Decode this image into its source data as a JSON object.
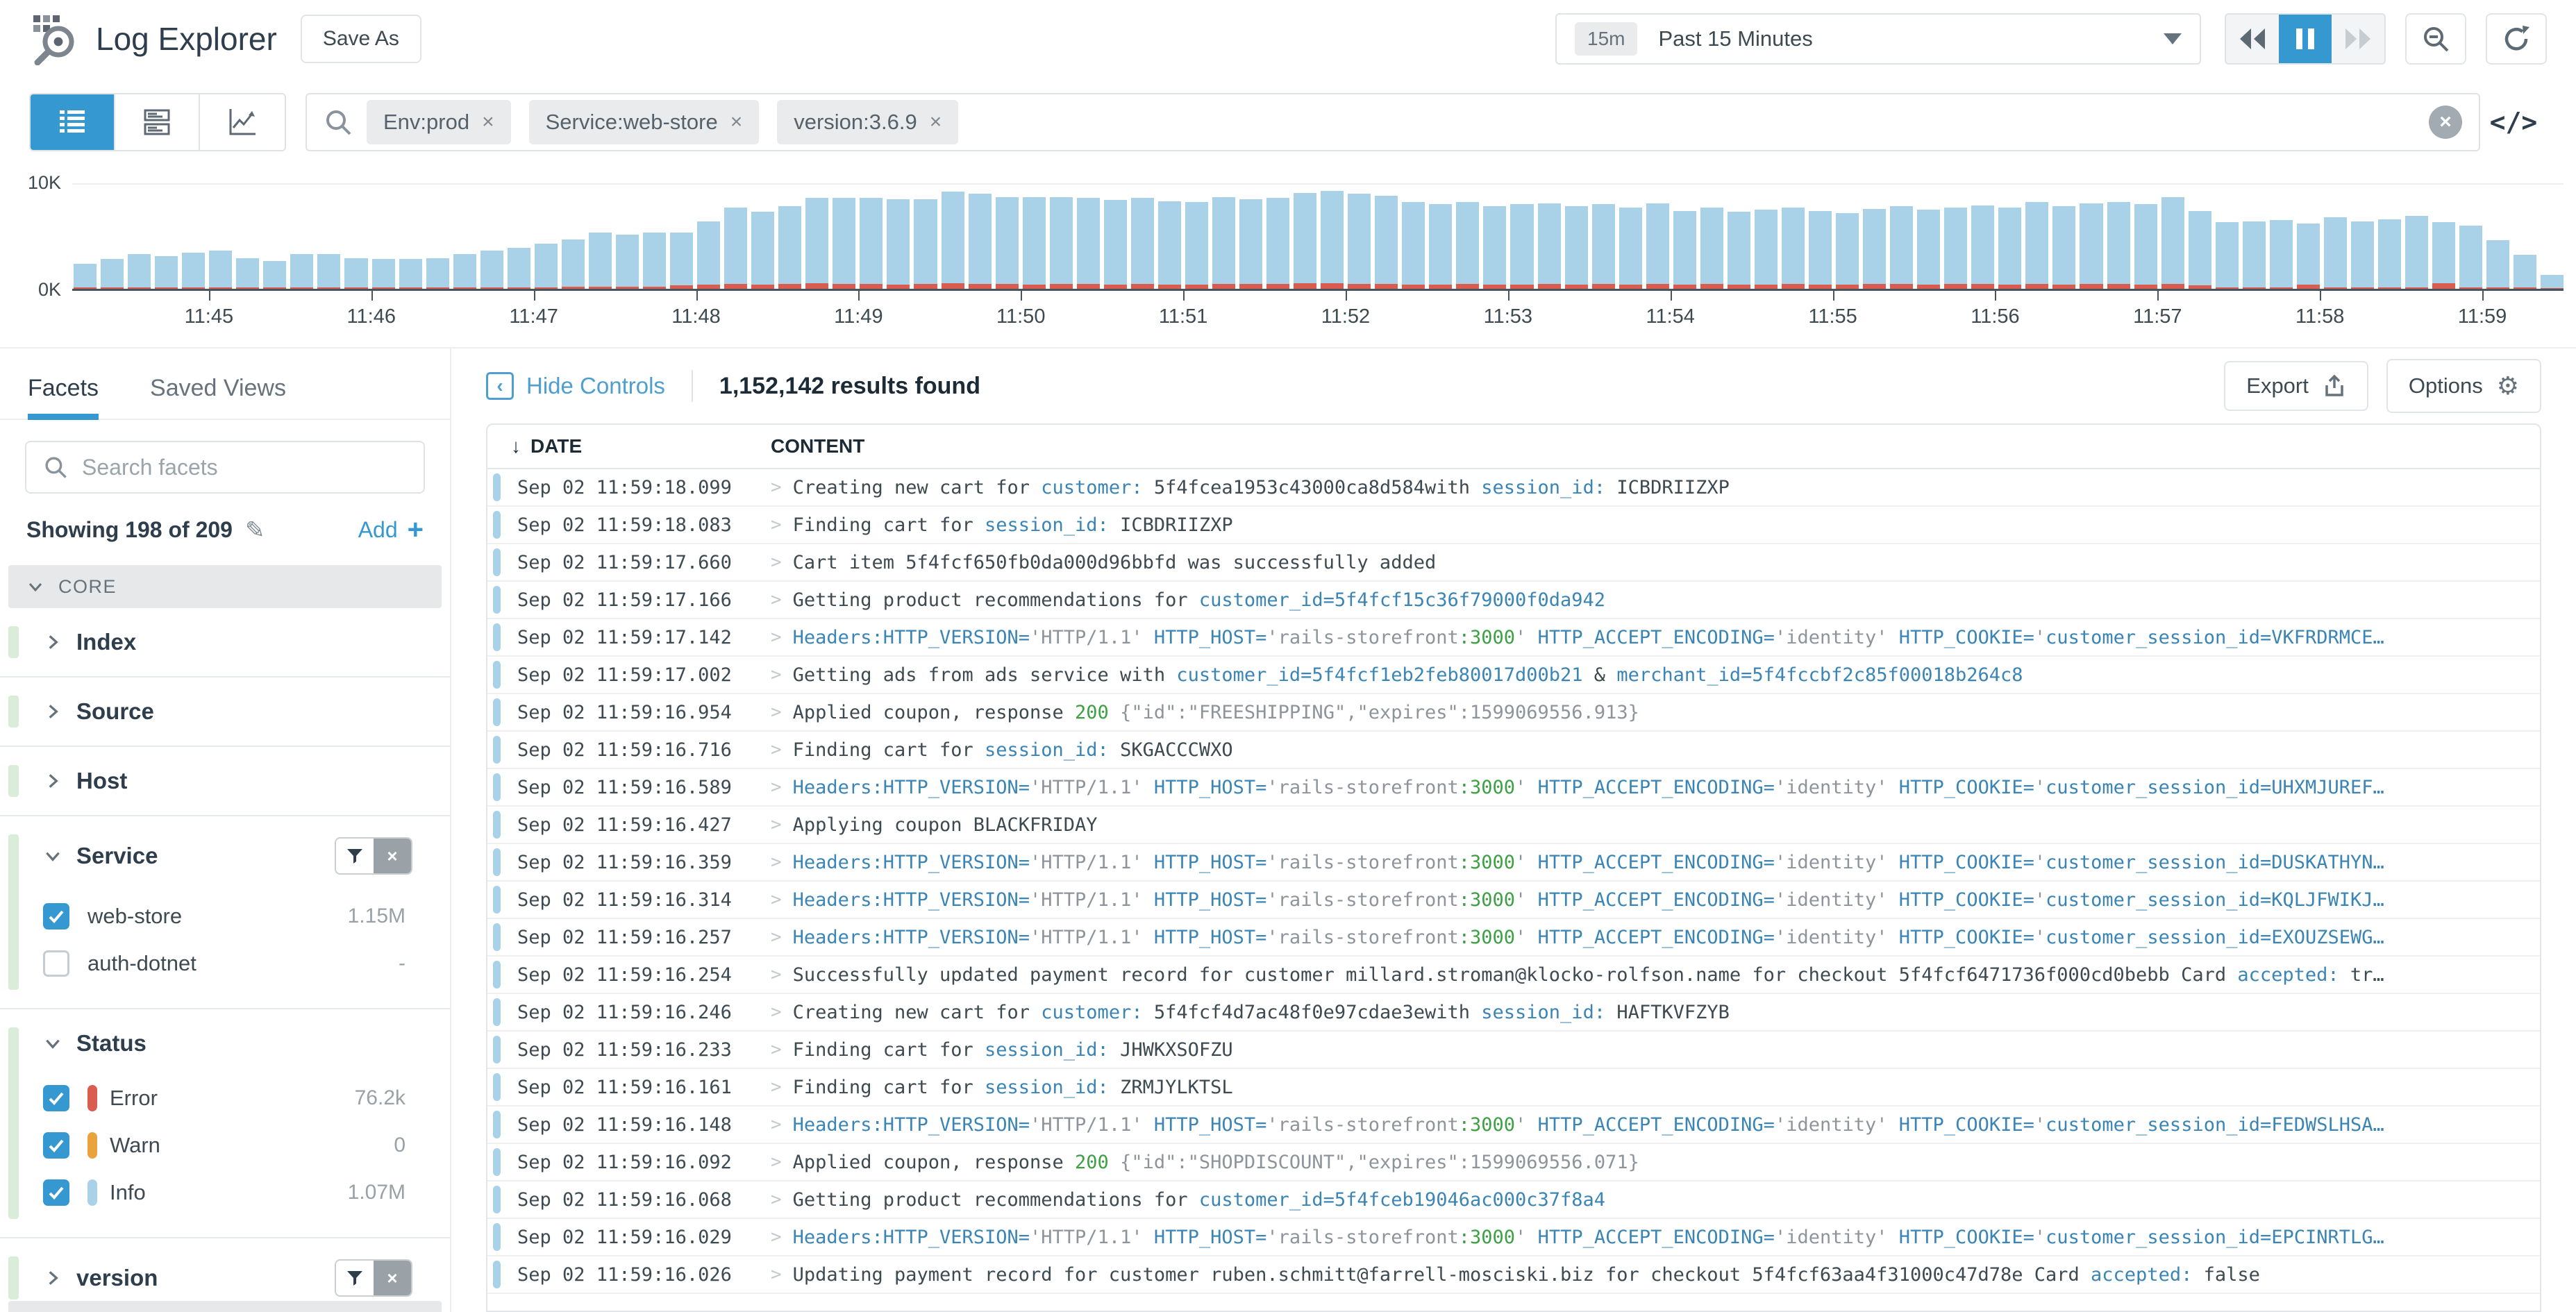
{
  "icons": {
    "close": "×",
    "gear": "⚙",
    "code": "</>",
    "sort_down": "↓",
    "plus": "+",
    "pencil": "✎",
    "hide_chev": "‹"
  },
  "colors": {
    "accent": "#3598d1",
    "link": "#4d9fcf",
    "error": "#d85c50",
    "warn": "#e8a33d",
    "info": "#a9d2e8",
    "bar": "#a9d2e8"
  },
  "header": {
    "title": "Log Explorer",
    "save_as": "Save As",
    "time_badge": "15m",
    "time_label": "Past 15 Minutes"
  },
  "search": {
    "pills": [
      {
        "name": "env",
        "label": "Env:prod"
      },
      {
        "name": "service",
        "label": "Service:web-store"
      },
      {
        "name": "version",
        "label": "version:3.6.9"
      }
    ]
  },
  "histogram": {
    "type": "bar",
    "y_max": 10,
    "y_max_label": "10K",
    "y_min_label": "0K",
    "x_labels": [
      "11:45",
      "11:46",
      "11:47",
      "11:48",
      "11:49",
      "11:50",
      "11:51",
      "11:52",
      "11:53",
      "11:54",
      "11:55",
      "11:56",
      "11:57",
      "11:58",
      "11:59"
    ],
    "tick_start_index": 5,
    "ticks_every": 6,
    "bars": [
      2.4,
      2.8,
      3.3,
      3.1,
      3.4,
      3.6,
      2.9,
      2.6,
      3.3,
      3.3,
      2.9,
      2.8,
      2.8,
      2.9,
      3.3,
      3.6,
      3.9,
      4.3,
      4.7,
      5.3,
      5.1,
      5.3,
      5.3,
      6.4,
      7.7,
      7.3,
      7.8,
      8.6,
      8.6,
      8.6,
      8.5,
      8.5,
      9.2,
      9.0,
      8.7,
      8.7,
      8.7,
      8.6,
      8.4,
      8.6,
      8.3,
      8.2,
      8.7,
      8.5,
      8.6,
      9.1,
      9.3,
      9.0,
      8.8,
      8.2,
      8.0,
      8.2,
      7.8,
      8.0,
      8.1,
      7.8,
      8.0,
      7.7,
      8.1,
      7.4,
      7.7,
      7.3,
      7.5,
      7.7,
      7.4,
      7.2,
      7.6,
      7.8,
      7.5,
      7.7,
      7.9,
      7.7,
      8.2,
      7.8,
      8.1,
      8.2,
      8.0,
      8.7,
      7.4,
      6.3,
      6.4,
      6.5,
      6.2,
      6.8,
      6.4,
      6.6,
      6.9,
      6.3,
      6.0,
      4.6,
      3.2,
      1.3
    ],
    "errors": [
      0.1,
      0.12,
      0.15,
      0.12,
      0.12,
      0.15,
      0.1,
      0.1,
      0.12,
      0.12,
      0.1,
      0.1,
      0.1,
      0.12,
      0.12,
      0.12,
      0.15,
      0.15,
      0.18,
      0.2,
      0.18,
      0.2,
      0.3,
      0.4,
      0.45,
      0.4,
      0.45,
      0.5,
      0.45,
      0.45,
      0.4,
      0.45,
      0.5,
      0.45,
      0.45,
      0.4,
      0.45,
      0.45,
      0.4,
      0.45,
      0.4,
      0.4,
      0.45,
      0.45,
      0.45,
      0.5,
      0.5,
      0.45,
      0.45,
      0.4,
      0.4,
      0.45,
      0.4,
      0.4,
      0.45,
      0.4,
      0.45,
      0.4,
      0.45,
      0.4,
      0.45,
      0.4,
      0.4,
      0.45,
      0.4,
      0.4,
      0.45,
      0.45,
      0.4,
      0.45,
      0.45,
      0.4,
      0.45,
      0.4,
      0.45,
      0.45,
      0.4,
      0.45,
      0.3,
      0.1,
      0.1,
      0.1,
      0.4,
      0.1,
      0.1,
      0.1,
      0.1,
      0.5,
      0.15,
      0.1,
      0.1,
      0.08
    ]
  },
  "sidebar": {
    "tabs": [
      {
        "label": "Facets"
      },
      {
        "label": "Saved Views"
      }
    ],
    "search_placeholder": "Search facets",
    "showing": "Showing 198 of 209",
    "add_label": "Add",
    "core_label": "CORE",
    "facets": [
      {
        "name": "index",
        "label": "Index",
        "expanded": false,
        "filter_buttons": false,
        "items": []
      },
      {
        "name": "source",
        "label": "Source",
        "expanded": false,
        "filter_buttons": false,
        "items": []
      },
      {
        "name": "host",
        "label": "Host",
        "expanded": false,
        "filter_buttons": false,
        "items": []
      },
      {
        "name": "service",
        "label": "Service",
        "expanded": true,
        "filter_buttons": true,
        "items": [
          {
            "label": "web-store",
            "checked": true,
            "count": "1.15M"
          },
          {
            "label": "auth-dotnet",
            "checked": false,
            "count": "-"
          }
        ]
      },
      {
        "name": "status",
        "label": "Status",
        "expanded": true,
        "filter_buttons": false,
        "items": [
          {
            "label": "Error",
            "checked": true,
            "count": "76.2k",
            "pill_color": "#d85c50"
          },
          {
            "label": "Warn",
            "checked": true,
            "count": "0",
            "pill_color": "#e8a33d"
          },
          {
            "label": "Info",
            "checked": true,
            "count": "1.07M",
            "pill_color": "#a9d2e8"
          }
        ]
      },
      {
        "name": "version",
        "label": "version",
        "expanded": false,
        "filter_buttons": true,
        "items": []
      }
    ]
  },
  "results": {
    "hide_controls": "Hide Controls",
    "count_text": "1,152,142 results found",
    "export_label": "Export",
    "options_label": "Options",
    "col_date": "DATE",
    "col_content": "CONTENT",
    "rows": [
      {
        "date": "Sep 02 11:59:18.099",
        "segments": [
          [
            "txt",
            "Creating new cart for "
          ],
          [
            "attr",
            "customer:"
          ],
          [
            "txt",
            " 5f4fcea1953c43000ca8d584with "
          ],
          [
            "attr",
            "session_id:"
          ],
          [
            "txt",
            " ICBDRIIZXP"
          ]
        ]
      },
      {
        "date": "Sep 02 11:59:18.083",
        "segments": [
          [
            "txt",
            "Finding cart for "
          ],
          [
            "attr",
            "session_id:"
          ],
          [
            "txt",
            " ICBDRIIZXP"
          ]
        ]
      },
      {
        "date": "Sep 02 11:59:17.660",
        "segments": [
          [
            "txt",
            "Cart item 5f4fcf650fb0da000d96bbfd was successfully added"
          ]
        ]
      },
      {
        "date": "Sep 02 11:59:17.166",
        "segments": [
          [
            "txt",
            "Getting product recommendations for "
          ],
          [
            "attr",
            "customer_id=5f4fcf15c36f79000f0da942"
          ]
        ]
      },
      {
        "date": "Sep 02 11:59:17.142",
        "segments": [
          [
            "attr",
            "Headers:HTTP_VERSION="
          ],
          [
            "str",
            "'HTTP/1.1'"
          ],
          [
            "txt",
            " "
          ],
          [
            "attr",
            "HTTP_HOST="
          ],
          [
            "str",
            "'rails-storefront"
          ],
          [
            "num",
            ":3000"
          ],
          [
            "str",
            "'"
          ],
          [
            "txt",
            " "
          ],
          [
            "attr",
            "HTTP_ACCEPT_ENCODING="
          ],
          [
            "str",
            "'identity'"
          ],
          [
            "txt",
            " "
          ],
          [
            "attr",
            "HTTP_COOKIE="
          ],
          [
            "str",
            "'"
          ],
          [
            "attr",
            "customer_session_id=VKFRDRMCE…"
          ]
        ]
      },
      {
        "date": "Sep 02 11:59:17.002",
        "segments": [
          [
            "txt",
            "Getting ads from ads service with "
          ],
          [
            "attr",
            "customer_id=5f4fcf1eb2feb80017d00b21"
          ],
          [
            "txt",
            " & "
          ],
          [
            "attr",
            "merchant_id=5f4fccbf2c85f00018b264c8"
          ]
        ]
      },
      {
        "date": "Sep 02 11:59:16.954",
        "segments": [
          [
            "txt",
            "Applied coupon, response "
          ],
          [
            "num",
            "200"
          ],
          [
            "txt",
            " "
          ],
          [
            "str",
            "{\"id\":\"FREESHIPPING\",\"expires\":1599069556.913}"
          ]
        ]
      },
      {
        "date": "Sep 02 11:59:16.716",
        "segments": [
          [
            "txt",
            "Finding cart for "
          ],
          [
            "attr",
            "session_id:"
          ],
          [
            "txt",
            " SKGACCCWXO"
          ]
        ]
      },
      {
        "date": "Sep 02 11:59:16.589",
        "segments": [
          [
            "attr",
            "Headers:HTTP_VERSION="
          ],
          [
            "str",
            "'HTTP/1.1'"
          ],
          [
            "txt",
            " "
          ],
          [
            "attr",
            "HTTP_HOST="
          ],
          [
            "str",
            "'rails-storefront"
          ],
          [
            "num",
            ":3000"
          ],
          [
            "str",
            "'"
          ],
          [
            "txt",
            " "
          ],
          [
            "attr",
            "HTTP_ACCEPT_ENCODING="
          ],
          [
            "str",
            "'identity'"
          ],
          [
            "txt",
            " "
          ],
          [
            "attr",
            "HTTP_COOKIE="
          ],
          [
            "str",
            "'"
          ],
          [
            "attr",
            "customer_session_id=UHXMJUREF…"
          ]
        ]
      },
      {
        "date": "Sep 02 11:59:16.427",
        "segments": [
          [
            "txt",
            "Applying coupon BLACKFRIDAY"
          ]
        ]
      },
      {
        "date": "Sep 02 11:59:16.359",
        "segments": [
          [
            "attr",
            "Headers:HTTP_VERSION="
          ],
          [
            "str",
            "'HTTP/1.1'"
          ],
          [
            "txt",
            " "
          ],
          [
            "attr",
            "HTTP_HOST="
          ],
          [
            "str",
            "'rails-storefront"
          ],
          [
            "num",
            ":3000"
          ],
          [
            "str",
            "'"
          ],
          [
            "txt",
            " "
          ],
          [
            "attr",
            "HTTP_ACCEPT_ENCODING="
          ],
          [
            "str",
            "'identity'"
          ],
          [
            "txt",
            " "
          ],
          [
            "attr",
            "HTTP_COOKIE="
          ],
          [
            "str",
            "'"
          ],
          [
            "attr",
            "customer_session_id=DUSKATHYN…"
          ]
        ]
      },
      {
        "date": "Sep 02 11:59:16.314",
        "segments": [
          [
            "attr",
            "Headers:HTTP_VERSION="
          ],
          [
            "str",
            "'HTTP/1.1'"
          ],
          [
            "txt",
            " "
          ],
          [
            "attr",
            "HTTP_HOST="
          ],
          [
            "str",
            "'rails-storefront"
          ],
          [
            "num",
            ":3000"
          ],
          [
            "str",
            "'"
          ],
          [
            "txt",
            " "
          ],
          [
            "attr",
            "HTTP_ACCEPT_ENCODING="
          ],
          [
            "str",
            "'identity'"
          ],
          [
            "txt",
            " "
          ],
          [
            "attr",
            "HTTP_COOKIE="
          ],
          [
            "str",
            "'"
          ],
          [
            "attr",
            "customer_session_id=KQLJFWIKJ…"
          ]
        ]
      },
      {
        "date": "Sep 02 11:59:16.257",
        "segments": [
          [
            "attr",
            "Headers:HTTP_VERSION="
          ],
          [
            "str",
            "'HTTP/1.1'"
          ],
          [
            "txt",
            " "
          ],
          [
            "attr",
            "HTTP_HOST="
          ],
          [
            "str",
            "'rails-storefront"
          ],
          [
            "num",
            ":3000"
          ],
          [
            "str",
            "'"
          ],
          [
            "txt",
            " "
          ],
          [
            "attr",
            "HTTP_ACCEPT_ENCODING="
          ],
          [
            "str",
            "'identity'"
          ],
          [
            "txt",
            " "
          ],
          [
            "attr",
            "HTTP_COOKIE="
          ],
          [
            "str",
            "'"
          ],
          [
            "attr",
            "customer_session_id=EXOUZSEWG…"
          ]
        ]
      },
      {
        "date": "Sep 02 11:59:16.254",
        "segments": [
          [
            "txt",
            "Successfully updated payment record for customer millard.stroman@klocko-rolfson.name for checkout 5f4fcf6471736f000cd0bebb Card "
          ],
          [
            "attr",
            "accepted:"
          ],
          [
            "txt",
            " tr…"
          ]
        ]
      },
      {
        "date": "Sep 02 11:59:16.246",
        "segments": [
          [
            "txt",
            "Creating new cart for "
          ],
          [
            "attr",
            "customer:"
          ],
          [
            "txt",
            " 5f4fcf4d7ac48f0e97cdae3ewith "
          ],
          [
            "attr",
            "session_id:"
          ],
          [
            "txt",
            " HAFTKVFZYB"
          ]
        ]
      },
      {
        "date": "Sep 02 11:59:16.233",
        "segments": [
          [
            "txt",
            "Finding cart for "
          ],
          [
            "attr",
            "session_id:"
          ],
          [
            "txt",
            " JHWKXSOFZU"
          ]
        ]
      },
      {
        "date": "Sep 02 11:59:16.161",
        "segments": [
          [
            "txt",
            "Finding cart for "
          ],
          [
            "attr",
            "session_id:"
          ],
          [
            "txt",
            " ZRMJYLKTSL"
          ]
        ]
      },
      {
        "date": "Sep 02 11:59:16.148",
        "segments": [
          [
            "attr",
            "Headers:HTTP_VERSION="
          ],
          [
            "str",
            "'HTTP/1.1'"
          ],
          [
            "txt",
            " "
          ],
          [
            "attr",
            "HTTP_HOST="
          ],
          [
            "str",
            "'rails-storefront"
          ],
          [
            "num",
            ":3000"
          ],
          [
            "str",
            "'"
          ],
          [
            "txt",
            " "
          ],
          [
            "attr",
            "HTTP_ACCEPT_ENCODING="
          ],
          [
            "str",
            "'identity'"
          ],
          [
            "txt",
            " "
          ],
          [
            "attr",
            "HTTP_COOKIE="
          ],
          [
            "str",
            "'"
          ],
          [
            "attr",
            "customer_session_id=FEDWSLHSA…"
          ]
        ]
      },
      {
        "date": "Sep 02 11:59:16.092",
        "segments": [
          [
            "txt",
            "Applied coupon, response "
          ],
          [
            "num",
            "200"
          ],
          [
            "txt",
            " "
          ],
          [
            "str",
            "{\"id\":\"SHOPDISCOUNT\",\"expires\":1599069556.071}"
          ]
        ]
      },
      {
        "date": "Sep 02 11:59:16.068",
        "segments": [
          [
            "txt",
            "Getting product recommendations for "
          ],
          [
            "attr",
            "customer_id=5f4fceb19046ac000c37f8a4"
          ]
        ]
      },
      {
        "date": "Sep 02 11:59:16.029",
        "segments": [
          [
            "attr",
            "Headers:HTTP_VERSION="
          ],
          [
            "str",
            "'HTTP/1.1'"
          ],
          [
            "txt",
            " "
          ],
          [
            "attr",
            "HTTP_HOST="
          ],
          [
            "str",
            "'rails-storefront"
          ],
          [
            "num",
            ":3000"
          ],
          [
            "str",
            "'"
          ],
          [
            "txt",
            " "
          ],
          [
            "attr",
            "HTTP_ACCEPT_ENCODING="
          ],
          [
            "str",
            "'identity'"
          ],
          [
            "txt",
            " "
          ],
          [
            "attr",
            "HTTP_COOKIE="
          ],
          [
            "str",
            "'"
          ],
          [
            "attr",
            "customer_session_id=EPCINRTLG…"
          ]
        ]
      },
      {
        "date": "Sep 02 11:59:16.026",
        "segments": [
          [
            "txt",
            "Updating payment record for customer ruben.schmitt@farrell-mosciski.biz for checkout 5f4fcf63aa4f31000c47d78e Card "
          ],
          [
            "attr",
            "accepted:"
          ],
          [
            "txt",
            " false"
          ]
        ]
      }
    ]
  }
}
